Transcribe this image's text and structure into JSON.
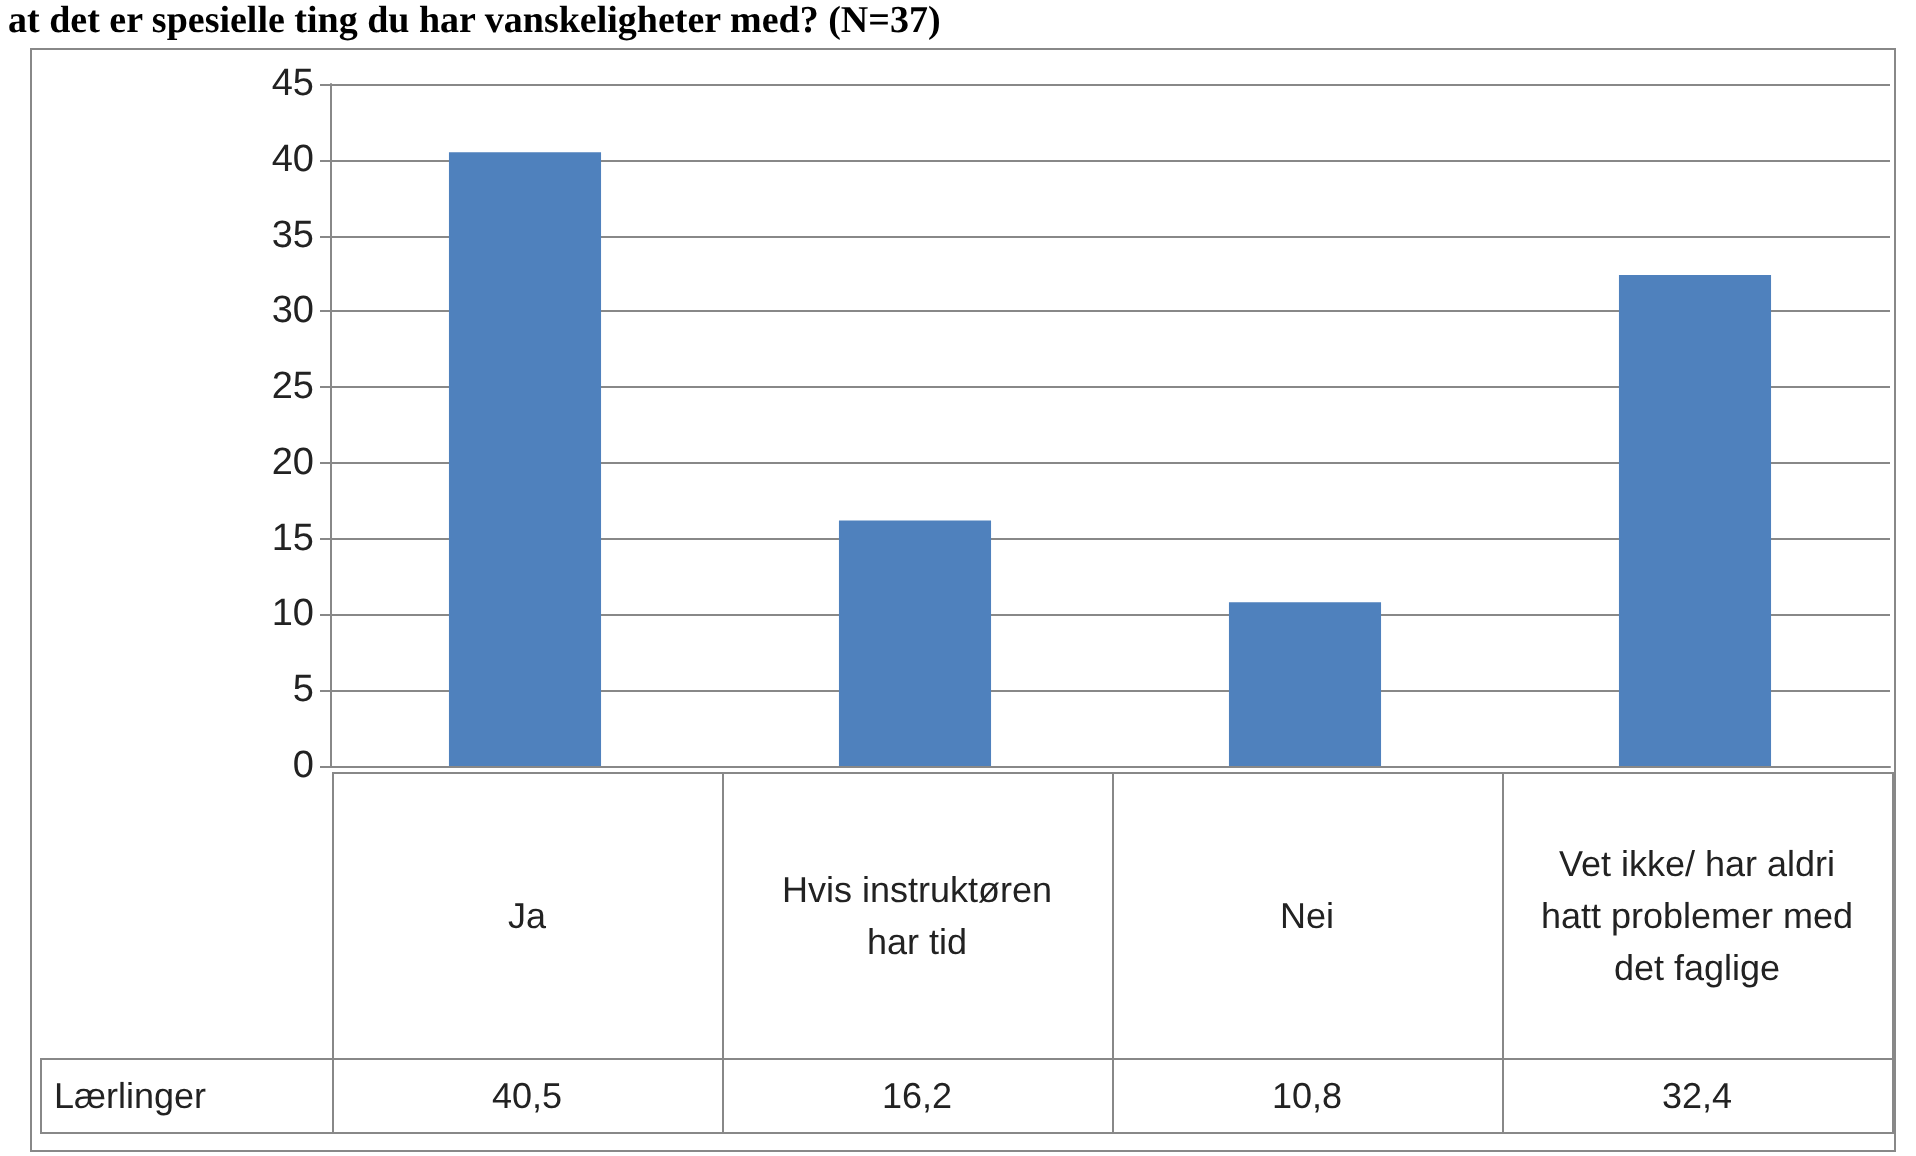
{
  "chart_data": {
    "type": "bar",
    "title": "at det er spesielle ting du har vanskeligheter med? (N=37)",
    "categories": [
      "Ja",
      "Hvis instruktøren har tid",
      "Nei",
      "Vet ikke/ har aldri hatt problemer med det faglige"
    ],
    "series": [
      {
        "name": "Lærlinger",
        "color": "#4f81bd",
        "values": [
          40.5,
          16.2,
          10.8,
          32.4
        ],
        "value_labels": [
          "40,5",
          "16,2",
          "10,8",
          "32,4"
        ]
      }
    ],
    "ylim": [
      0,
      45
    ],
    "yticks": [
      0,
      5,
      10,
      15,
      20,
      25,
      30,
      35,
      40,
      45
    ],
    "grid": "y",
    "legend": false
  }
}
